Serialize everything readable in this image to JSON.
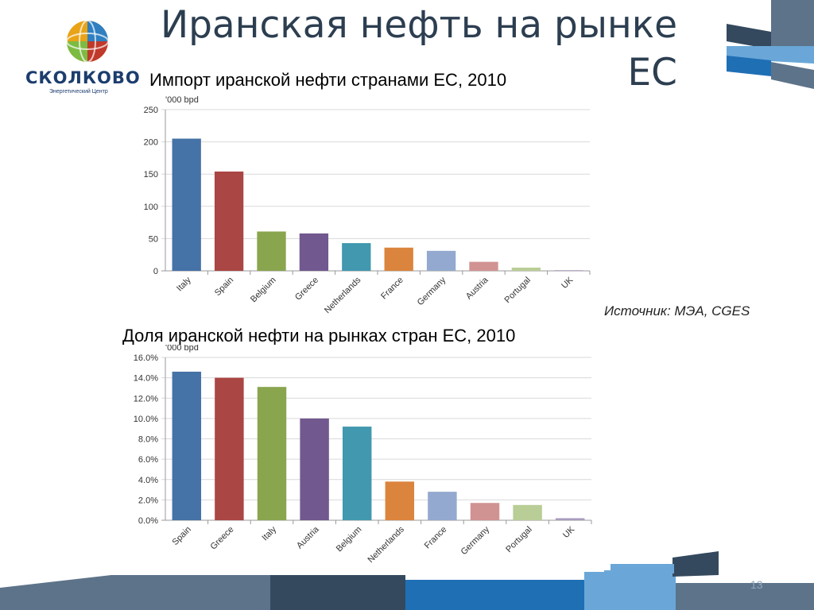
{
  "slide": {
    "title": "Иранская нефть на рынке ЕС",
    "logo_text": "СКОЛКОВО",
    "logo_subtext": "Энергетический Центр",
    "source": "Источник: МЭА, CGES",
    "page_number": "13"
  },
  "colors": {
    "title": "#2c3e50",
    "deco_dark": "#34495e",
    "deco_blue": "#1f6fb5",
    "deco_light": "#6aa7d8",
    "deco_grey": "#5d7389"
  },
  "chart_data": [
    {
      "type": "bar",
      "title": "Импорт иранской нефти странами ЕС, 2010",
      "unit_label": "'000 bpd",
      "categories": [
        "Italy",
        "Spain",
        "Belgium",
        "Greece",
        "Netherlands",
        "France",
        "Germany",
        "Austria",
        "Portugal",
        "UK"
      ],
      "values": [
        205,
        154,
        61,
        58,
        43,
        36,
        31,
        14,
        5,
        1
      ],
      "colors": [
        "#4572a7",
        "#aa4643",
        "#89a54e",
        "#71588f",
        "#4198af",
        "#db843d",
        "#93a9cf",
        "#d19392",
        "#b9cd96",
        "#a99bbd"
      ],
      "yticks": [
        "0",
        "50",
        "100",
        "150",
        "200",
        "250"
      ],
      "ylim": [
        0,
        250
      ],
      "grid": true
    },
    {
      "type": "bar",
      "title": "Доля иранской нефти на рынках стран ЕС, 2010",
      "unit_label": "'000 bpd",
      "categories": [
        "Spain",
        "Greece",
        "Italy",
        "Austria",
        "Belgium",
        "Netherlands",
        "France",
        "Germany",
        "Portugal",
        "UK"
      ],
      "values": [
        14.6,
        14.0,
        13.1,
        10.0,
        9.2,
        3.8,
        2.8,
        1.7,
        1.5,
        0.2
      ],
      "colors": [
        "#4572a7",
        "#aa4643",
        "#89a54e",
        "#71588f",
        "#4198af",
        "#db843d",
        "#93a9cf",
        "#d19392",
        "#b9cd96",
        "#a99bbd"
      ],
      "yticks": [
        "0.0%",
        "2.0%",
        "4.0%",
        "6.0%",
        "8.0%",
        "10.0%",
        "12.0%",
        "14.0%",
        "16.0%"
      ],
      "ylim": [
        0,
        16
      ],
      "grid": true
    }
  ]
}
